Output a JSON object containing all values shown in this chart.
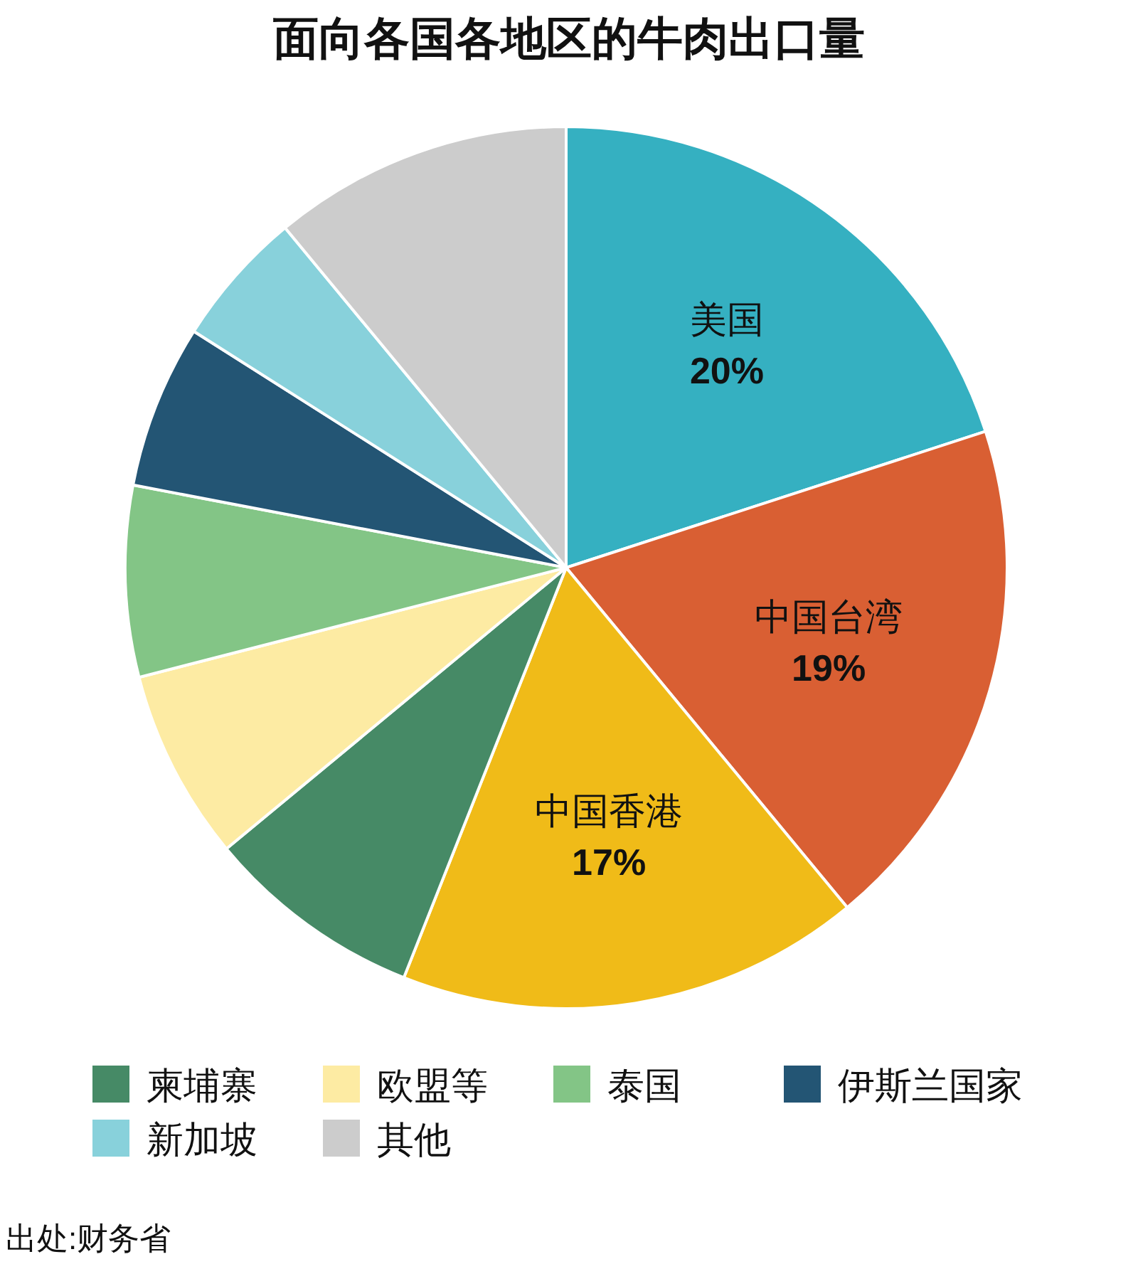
{
  "chart_data": {
    "type": "pie",
    "title": "面向各国各地区的牛肉出口量",
    "categories": [
      "美国",
      "中国台湾",
      "中国香港",
      "柬埔寨",
      "欧盟等",
      "泰国",
      "伊斯兰国家",
      "新加坡",
      "其他"
    ],
    "values": [
      20,
      19,
      17,
      8,
      7,
      7,
      6,
      5,
      11
    ],
    "value_labels": [
      "20%",
      "19%",
      "17%",
      null,
      null,
      null,
      null,
      null,
      null
    ],
    "colors": [
      "#35b0c1",
      "#d95f33",
      "#f0bb18",
      "#468a66",
      "#fdeba3",
      "#83c586",
      "#235574",
      "#88d1db",
      "#cccccc"
    ],
    "legend": "bottom",
    "annotations": [
      "出处:财务省"
    ]
  }
}
